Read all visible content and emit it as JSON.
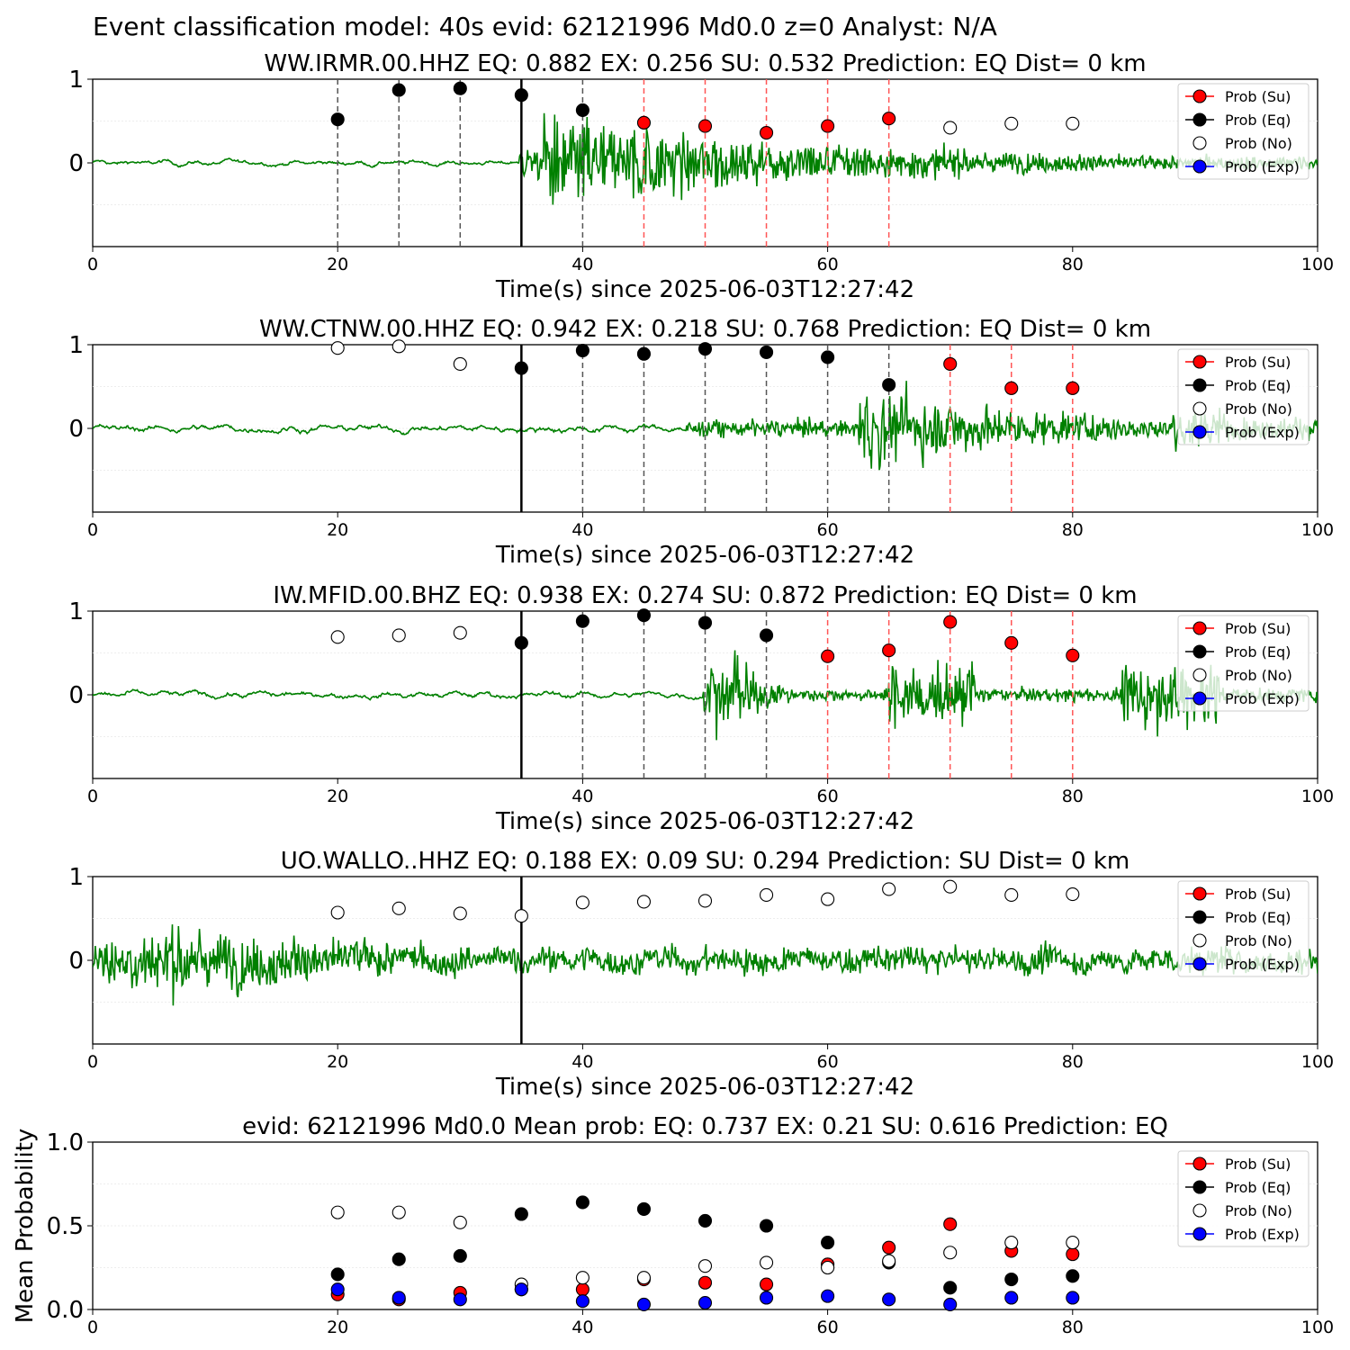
{
  "suptitle": "Event classification model: 40s evid: 62121996 Md0.0 z=0 Analyst: N/A",
  "legend_labels": [
    "Prob (Su)",
    "Prob (Eq)",
    "Prob (No)",
    "Prob (Exp)"
  ],
  "colors": {
    "waveform": "#008000",
    "su": "#ff0000",
    "eq": "#000000",
    "no": "#ffffff",
    "exp": "#0000ff",
    "su_line": "#ff5555",
    "eq_line": "#555555"
  },
  "chart_data": [
    {
      "type": "line",
      "title": "WW.IRMR.00.HHZ   EQ: 0.882  EX: 0.256  SU: 0.532   Prediction: EQ    Dist= 0 km",
      "xlabel": "Time(s) since 2025-06-03T12:27:42",
      "ylabel": "",
      "xlim": [
        0,
        100
      ],
      "ylim": [
        -1,
        1
      ],
      "xticks": [
        "0",
        "20",
        "40",
        "60",
        "80",
        "100"
      ],
      "yticks": [
        "1",
        "0"
      ],
      "legend_position": "top-right",
      "pick_time": 35,
      "waveform": {
        "onset": 34.8,
        "peak": 38.8,
        "pre_amp": 0.04,
        "post_amp": 0.25,
        "peak_amp": 0.7,
        "decay": 0.04,
        "min_amp": 0.1,
        "late": []
      },
      "windows": [
        20,
        25,
        30,
        35,
        40,
        45,
        50,
        55,
        60,
        65,
        70,
        75,
        80
      ],
      "classes": [
        "eq",
        "eq",
        "eq",
        "eq",
        "eq",
        "su",
        "su",
        "su",
        "su",
        "su",
        "no",
        "no",
        "no"
      ],
      "probs": [
        0.52,
        0.87,
        0.89,
        0.81,
        0.63,
        0.48,
        0.44,
        0.36,
        0.44,
        0.53,
        0.42,
        0.47,
        0.47
      ],
      "vlines_drawn": [
        true,
        true,
        true,
        false,
        true,
        true,
        true,
        true,
        true,
        true,
        false,
        false,
        false
      ]
    },
    {
      "type": "line",
      "title": "WW.CTNW.00.HHZ   EQ: 0.942  EX: 0.218  SU: 0.768   Prediction: EQ    Dist= 0 km",
      "xlabel": "Time(s) since 2025-06-03T12:27:42",
      "ylabel": "",
      "xlim": [
        0,
        100
      ],
      "ylim": [
        -1,
        1
      ],
      "xticks": [
        "0",
        "20",
        "40",
        "60",
        "80",
        "100"
      ],
      "yticks": [
        "1",
        "0"
      ],
      "legend_position": "top-right",
      "pick_time": 35,
      "waveform": {
        "onset": 48.5,
        "peak": 64.5,
        "pre_amp": 0.06,
        "post_amp": 0.12,
        "peak_amp": 0.55,
        "decay": 0.06,
        "min_amp": 0.15,
        "late": [
          [
            88,
            93,
            0.3
          ]
        ]
      },
      "windows": [
        20,
        25,
        30,
        35,
        40,
        45,
        50,
        55,
        60,
        65,
        70,
        75,
        80
      ],
      "classes": [
        "no",
        "no",
        "no",
        "eq",
        "eq",
        "eq",
        "eq",
        "eq",
        "eq",
        "eq",
        "su",
        "su",
        "su"
      ],
      "probs": [
        0.96,
        0.98,
        0.77,
        0.72,
        0.93,
        0.89,
        0.95,
        0.91,
        0.85,
        0.52,
        0.77,
        0.48,
        0.48
      ],
      "vlines_drawn": [
        false,
        false,
        false,
        false,
        true,
        true,
        true,
        true,
        true,
        true,
        true,
        true,
        true
      ]
    },
    {
      "type": "line",
      "title": "IW.MFID.00.BHZ   EQ: 0.938  EX: 0.274  SU: 0.872   Prediction: EQ    Dist= 0 km",
      "xlabel": "Time(s) since 2025-06-03T12:27:42",
      "ylabel": "",
      "xlim": [
        0,
        100
      ],
      "ylim": [
        -1,
        1
      ],
      "xticks": [
        "0",
        "20",
        "40",
        "60",
        "80",
        "100"
      ],
      "yticks": [
        "1",
        "0"
      ],
      "legend_position": "top-right",
      "pick_time": 35,
      "waveform": {
        "onset": 49.8,
        "peak": 51.0,
        "pre_amp": 0.05,
        "post_amp": 0.2,
        "peak_amp": 0.5,
        "decay": 0.25,
        "min_amp": 0.1,
        "late": [
          [
            65,
            72,
            0.45
          ],
          [
            84,
            92,
            0.5
          ]
        ]
      },
      "windows": [
        20,
        25,
        30,
        35,
        40,
        45,
        50,
        55,
        60,
        65,
        70,
        75,
        80
      ],
      "classes": [
        "no",
        "no",
        "no",
        "eq",
        "eq",
        "eq",
        "eq",
        "eq",
        "su",
        "su",
        "su",
        "su",
        "su"
      ],
      "probs": [
        0.69,
        0.71,
        0.74,
        0.62,
        0.88,
        0.95,
        0.86,
        0.71,
        0.46,
        0.53,
        0.87,
        0.62,
        0.47
      ],
      "vlines_drawn": [
        false,
        false,
        false,
        false,
        true,
        true,
        true,
        true,
        true,
        true,
        true,
        true,
        true
      ]
    },
    {
      "type": "line",
      "title": "UO.WALLO..HHZ   EQ: 0.188  EX: 0.09  SU: 0.294   Prediction: SU    Dist= 0 km",
      "xlabel": "Time(s) since 2025-06-03T12:27:42",
      "ylabel": "",
      "xlim": [
        0,
        100
      ],
      "ylim": [
        -1,
        1
      ],
      "xticks": [
        "0",
        "20",
        "40",
        "60",
        "80",
        "100"
      ],
      "yticks": [
        "1",
        "0"
      ],
      "legend_position": "top-right",
      "pick_time": 35,
      "waveform": {
        "onset": 0,
        "peak": 6,
        "pre_amp": 0.35,
        "post_amp": 0.35,
        "peak_amp": 0.5,
        "decay": 0.04,
        "min_amp": 0.18,
        "late": []
      },
      "windows": [
        20,
        25,
        30,
        35,
        40,
        45,
        50,
        55,
        60,
        65,
        70,
        75,
        80
      ],
      "classes": [
        "no",
        "no",
        "no",
        "no",
        "no",
        "no",
        "no",
        "no",
        "no",
        "no",
        "no",
        "no",
        "no"
      ],
      "probs": [
        0.57,
        0.62,
        0.56,
        0.53,
        0.69,
        0.7,
        0.71,
        0.78,
        0.73,
        0.85,
        0.88,
        0.78,
        0.79
      ],
      "vlines_drawn": [
        false,
        false,
        false,
        false,
        false,
        false,
        false,
        false,
        false,
        false,
        false,
        false,
        false
      ]
    },
    {
      "type": "scatter",
      "title": "evid: 62121996  Md0.0   Mean prob:   EQ: 0.737  EX: 0.21  SU: 0.616   Prediction: EQ",
      "xlabel": "",
      "ylabel": "Mean Probability",
      "xlim": [
        0,
        100
      ],
      "ylim": [
        0,
        1
      ],
      "xticks": [
        "0",
        "20",
        "40",
        "60",
        "80",
        "100"
      ],
      "yticks": [
        "1.0",
        "0.5",
        "0.0"
      ],
      "legend_position": "top-right",
      "x": [
        20,
        25,
        30,
        35,
        40,
        45,
        50,
        55,
        60,
        65,
        70,
        75,
        80
      ],
      "series": [
        {
          "name": "Prob (Su)",
          "key": "su",
          "values": [
            0.09,
            0.06,
            0.1,
            0.12,
            0.12,
            0.18,
            0.16,
            0.15,
            0.27,
            0.37,
            0.51,
            0.35,
            0.33
          ]
        },
        {
          "name": "Prob (Eq)",
          "key": "eq",
          "values": [
            0.21,
            0.3,
            0.32,
            0.57,
            0.64,
            0.6,
            0.53,
            0.5,
            0.4,
            0.28,
            0.13,
            0.18,
            0.2
          ]
        },
        {
          "name": "Prob (No)",
          "key": "no",
          "values": [
            0.58,
            0.58,
            0.52,
            0.15,
            0.19,
            0.19,
            0.26,
            0.28,
            0.25,
            0.29,
            0.34,
            0.4,
            0.4
          ]
        },
        {
          "name": "Prob (Exp)",
          "key": "exp",
          "values": [
            0.12,
            0.07,
            0.06,
            0.12,
            0.05,
            0.03,
            0.04,
            0.07,
            0.08,
            0.06,
            0.03,
            0.07,
            0.07
          ]
        }
      ]
    }
  ]
}
